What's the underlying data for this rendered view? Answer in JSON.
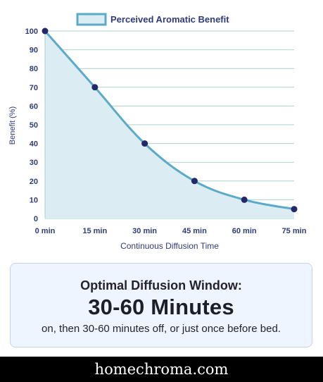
{
  "chart_data": {
    "type": "area",
    "x": [
      "0 min",
      "15 min",
      "30 min",
      "45 min",
      "60 min",
      "75 min"
    ],
    "series": [
      {
        "name": "Perceived Aromatic Benefit",
        "values": [
          100,
          70,
          40,
          20,
          10,
          5
        ]
      }
    ],
    "xlabel": "Continuous Diffusion Time",
    "ylabel": "Benefit (%)",
    "ylim": [
      0,
      100
    ],
    "yticks": [
      0,
      10,
      20,
      30,
      40,
      50,
      60,
      70,
      80,
      90,
      100
    ],
    "grid": "horizontal",
    "legend": "top-center",
    "colors": {
      "line": "#5aaac8",
      "fill": "#dbecf2",
      "point": "#23286b",
      "grid": "#a9d2cb",
      "tick_text": "#2f3b7a",
      "axis_title": "#2f3b7a"
    }
  },
  "callout": {
    "heading": "Optimal Diffusion Window:",
    "value": "30-60 Minutes",
    "text": "on, then 30-60 minutes off, or just once before bed."
  },
  "footer": {
    "site": "homechroma.com"
  }
}
